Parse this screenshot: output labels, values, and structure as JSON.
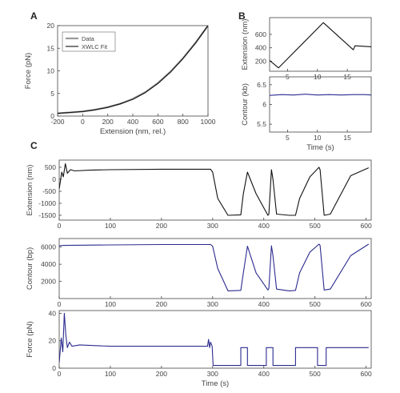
{
  "panel_labels": [
    "A",
    "B",
    "C"
  ],
  "chart_data": [
    {
      "id": "A",
      "type": "line",
      "xlabel": "Extension (nm, rel.)",
      "ylabel": "Force (pN)",
      "xlim": [
        -200,
        1000
      ],
      "ylim": [
        0,
        20
      ],
      "xticks": [
        -200,
        0,
        200,
        400,
        600,
        800,
        1000
      ],
      "yticks": [
        0,
        5,
        10,
        15,
        20
      ],
      "legend": "top-left",
      "series": [
        {
          "name": "Data",
          "color": "#9a9a9a",
          "width": 2.2,
          "x": [
            -200,
            -100,
            0,
            100,
            200,
            300,
            400,
            500,
            600,
            700,
            800,
            900,
            1000
          ],
          "y": [
            0.6,
            0.8,
            1.0,
            1.4,
            2.0,
            2.7,
            3.8,
            5.3,
            7.3,
            9.8,
            12.8,
            16.2,
            20.0
          ]
        },
        {
          "name": "XWLC Fit",
          "color": "#111111",
          "width": 1.1,
          "x": [
            -200,
            -100,
            0,
            100,
            200,
            300,
            400,
            500,
            600,
            700,
            800,
            900,
            1000
          ],
          "y": [
            0.6,
            0.8,
            1.0,
            1.4,
            1.9,
            2.7,
            3.7,
            5.2,
            7.2,
            9.7,
            12.7,
            16.1,
            20.0
          ]
        }
      ]
    },
    {
      "id": "B-top",
      "type": "line",
      "ylabel": "Extension (nm)",
      "xlim": [
        2,
        19
      ],
      "ylim": [
        50,
        850
      ],
      "xticks": [
        5,
        10,
        15
      ],
      "yticks": [
        200,
        400,
        600
      ],
      "series": [
        {
          "color": "#111111",
          "width": 1.1,
          "x": [
            2,
            3.5,
            11,
            16,
            16.3,
            19
          ],
          "y": [
            210,
            100,
            775,
            370,
            430,
            415
          ]
        }
      ]
    },
    {
      "id": "B-bottom",
      "type": "line",
      "xlabel": "Time (s)",
      "ylabel": "Contour (kb)",
      "xlim": [
        2,
        19
      ],
      "ylim": [
        5.3,
        6.7
      ],
      "xticks": [
        5,
        10,
        15
      ],
      "yticks": [
        5.5,
        6.0,
        6.5
      ],
      "series": [
        {
          "color": "#2b2b8f",
          "width": 1.1,
          "x": [
            2,
            4,
            6,
            8,
            10,
            12,
            14,
            16,
            18,
            19
          ],
          "y": [
            6.23,
            6.25,
            6.24,
            6.26,
            6.24,
            6.25,
            6.24,
            6.25,
            6.25,
            6.24
          ]
        }
      ]
    },
    {
      "id": "C-top",
      "type": "line",
      "ylabel": "Extension (nm)",
      "xlim": [
        0,
        610
      ],
      "ylim": [
        -1700,
        800
      ],
      "xticks": [
        0,
        100,
        200,
        300,
        400,
        500,
        600
      ],
      "yticks": [
        -1500,
        -1000,
        -500,
        0,
        500
      ],
      "series": [
        {
          "color": "#111111",
          "width": 1.1,
          "x": [
            0,
            5,
            8,
            12,
            16,
            22,
            30,
            60,
            100,
            200,
            296,
            300,
            310,
            330,
            355,
            360,
            368,
            385,
            408,
            410,
            415,
            418,
            425,
            450,
            462,
            470,
            490,
            508,
            510,
            518,
            530,
            570,
            605
          ],
          "y": [
            -400,
            300,
            100,
            650,
            250,
            400,
            350,
            380,
            400,
            420,
            420,
            300,
            -800,
            -1500,
            -1480,
            -600,
            300,
            -600,
            -1500,
            -1450,
            400,
            0,
            -1450,
            -1500,
            -1500,
            -800,
            100,
            500,
            400,
            -1500,
            -1450,
            150,
            480
          ]
        }
      ]
    },
    {
      "id": "C-middle",
      "type": "line",
      "ylabel": "Contour (bp)",
      "xlim": [
        0,
        610
      ],
      "ylim": [
        0,
        7000
      ],
      "xticks": [
        0,
        100,
        200,
        300,
        400,
        500,
        600
      ],
      "yticks": [
        2000,
        4000,
        6000
      ],
      "series": [
        {
          "color": "#2b2b8f",
          "width": 1.1,
          "x": [
            0,
            10,
            100,
            200,
            296,
            300,
            310,
            330,
            355,
            360,
            368,
            385,
            408,
            410,
            415,
            418,
            425,
            450,
            462,
            470,
            490,
            508,
            510,
            518,
            530,
            570,
            605
          ],
          "y": [
            6150,
            6200,
            6250,
            6300,
            6300,
            6100,
            3500,
            900,
            950,
            3000,
            6100,
            3000,
            1000,
            1200,
            6150,
            5000,
            1100,
            900,
            950,
            3000,
            5400,
            6350,
            6200,
            1000,
            1100,
            5000,
            6350
          ]
        }
      ]
    },
    {
      "id": "C-bottom",
      "type": "line",
      "xlabel": "Time (s)",
      "ylabel": "Force (pN)",
      "xlim": [
        0,
        610
      ],
      "ylim": [
        0,
        42
      ],
      "xticks": [
        0,
        100,
        200,
        300,
        400,
        500,
        600
      ],
      "yticks": [
        0,
        20,
        40
      ],
      "series": [
        {
          "color": "#2b2b8f",
          "width": 1.1,
          "x": [
            0,
            4,
            7,
            10,
            13,
            16,
            20,
            25,
            40,
            100,
            200,
            290,
            292,
            294,
            296,
            299,
            301,
            355,
            355,
            368,
            368,
            405,
            405,
            418,
            418,
            462,
            462,
            505,
            505,
            522,
            522,
            605
          ],
          "y": [
            4,
            22,
            12,
            40,
            24,
            15,
            19,
            16,
            17,
            16,
            16,
            16,
            21,
            15,
            19,
            16,
            2,
            2,
            15,
            15,
            2,
            2,
            15,
            15,
            2,
            2,
            15,
            15,
            2,
            2,
            15,
            15
          ]
        }
      ]
    }
  ]
}
